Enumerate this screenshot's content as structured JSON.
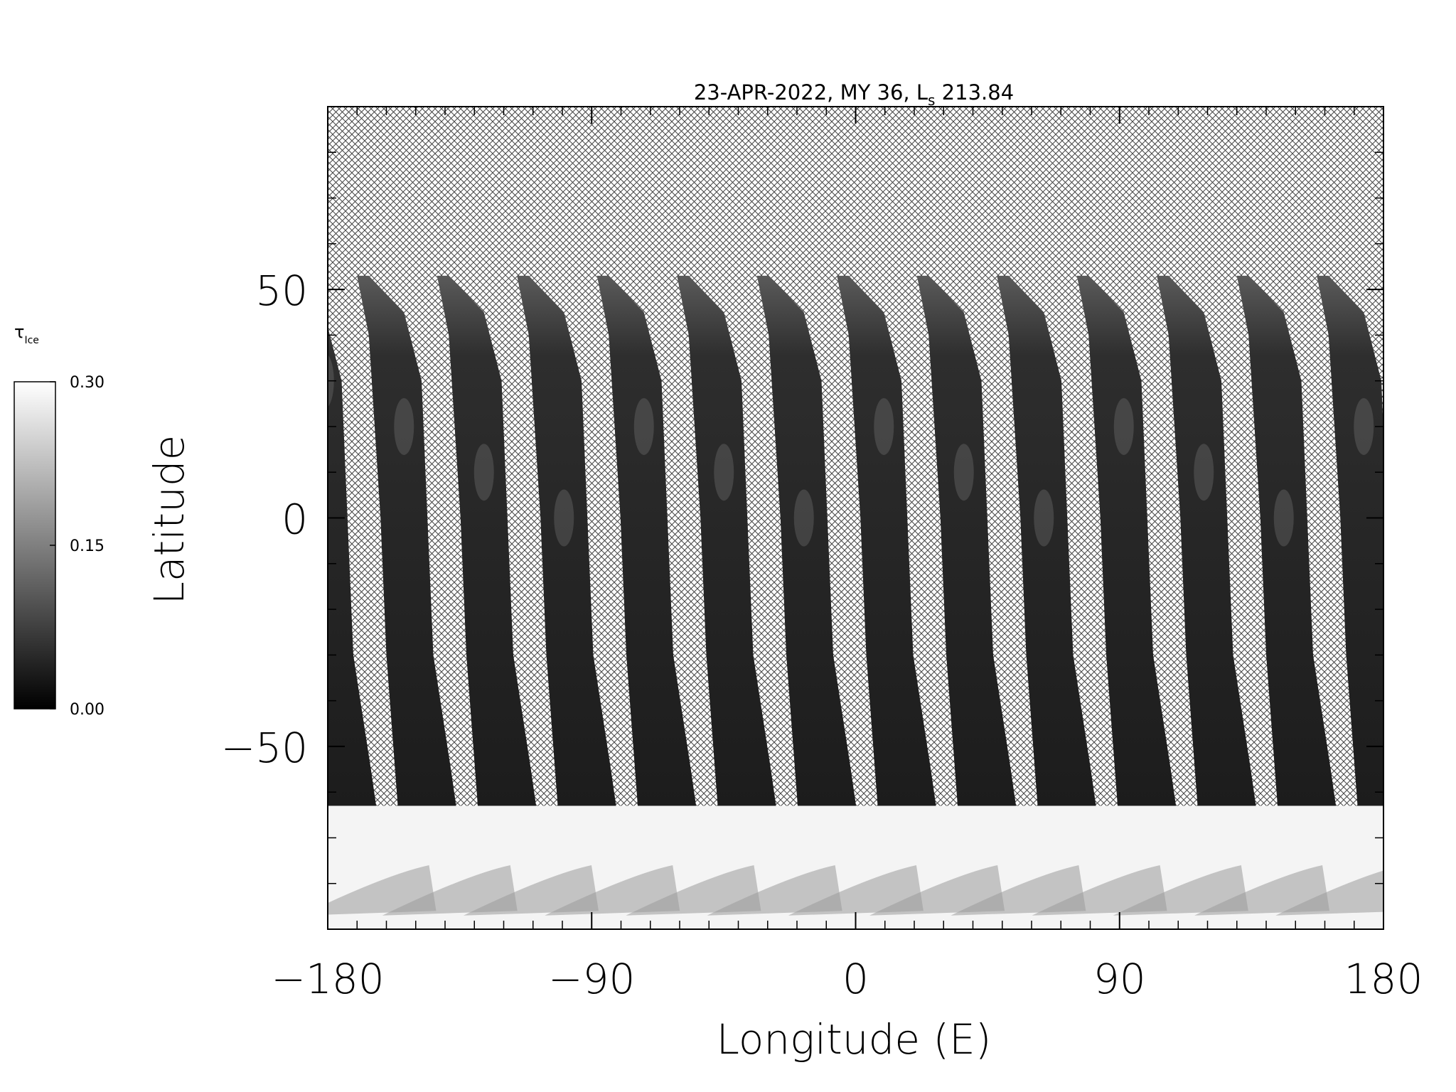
{
  "chart_data": {
    "type": "map",
    "title": {
      "prefix": "23-APR-2022, MY 36,  L",
      "subscript": "s",
      "suffix": " 213.84"
    },
    "xlabel": "Longitude (E)",
    "ylabel": "Latitude",
    "xlim": [
      -180,
      180
    ],
    "ylim": [
      -90,
      90
    ],
    "xticks": [
      {
        "value": -180,
        "label": "−180"
      },
      {
        "value": -90,
        "label": "−90"
      },
      0,
      90,
      180
    ],
    "yticks": [
      {
        "value": -50,
        "label": "−50"
      },
      0,
      50
    ],
    "minor_tick_step": 10,
    "colorbar": {
      "label": "τ",
      "label_sub": "Ice",
      "range": [
        0,
        0.3
      ],
      "colors": [
        "#000000",
        "#ffffff"
      ],
      "ticks": [
        {
          "value": 0,
          "label": "0.00"
        },
        {
          "value": 0.15,
          "label": "0.15"
        },
        {
          "value": 0.3,
          "label": "0.30"
        }
      ]
    }
  }
}
